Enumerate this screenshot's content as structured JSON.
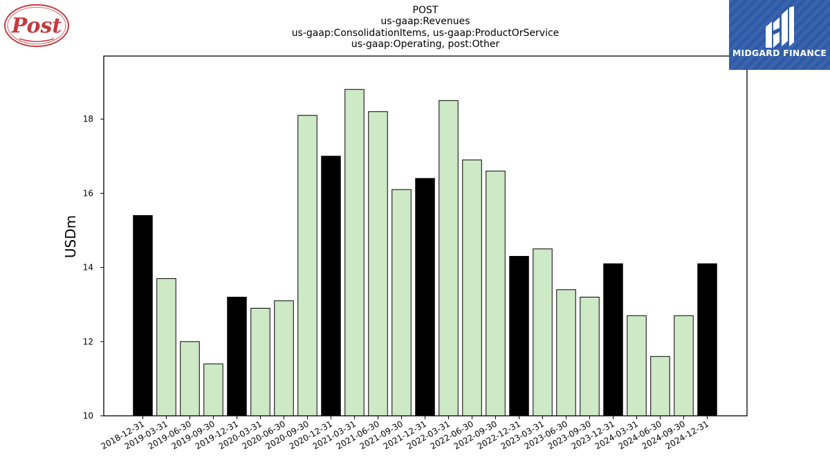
{
  "logos": {
    "post_logo_text": "Post",
    "midgard_logo_text": "MIDGARD FINANCE"
  },
  "colors": {
    "bar_black": "#000000",
    "bar_green": "#cde9c6",
    "midgard_blue": "#2f5aa8",
    "post_red": "#c6393f"
  },
  "chart_data": {
    "type": "bar",
    "title_lines": [
      "POST",
      "us-gaap:Revenues",
      "us-gaap:ConsolidationItems, us-gaap:ProductOrService",
      "us-gaap:Operating, post:Other"
    ],
    "xlabel": "",
    "ylabel": "USDm",
    "ylim": [
      10,
      19.7
    ],
    "yticks": [
      10,
      12,
      14,
      16,
      18
    ],
    "grid": false,
    "categories": [
      "2018-12-31",
      "2019-03-31",
      "2019-06-30",
      "2019-09-30",
      "2019-12-31",
      "2020-03-31",
      "2020-06-30",
      "2020-09-30",
      "2020-12-31",
      "2021-03-31",
      "2021-06-30",
      "2021-09-30",
      "2021-12-31",
      "2022-03-31",
      "2022-06-30",
      "2022-09-30",
      "2022-12-31",
      "2023-03-31",
      "2023-06-30",
      "2023-09-30",
      "2023-12-31",
      "2024-03-31",
      "2024-06-30",
      "2024-09-30",
      "2024-12-31"
    ],
    "values": [
      15.4,
      13.7,
      12.0,
      11.4,
      13.2,
      12.9,
      13.1,
      18.1,
      17.0,
      18.8,
      18.2,
      16.1,
      16.4,
      18.5,
      16.9,
      16.6,
      14.3,
      14.5,
      13.4,
      13.2,
      14.1,
      12.7,
      11.6,
      12.7,
      14.1
    ],
    "year_end_highlight": [
      true,
      false,
      false,
      false,
      true,
      false,
      false,
      false,
      true,
      false,
      false,
      false,
      true,
      false,
      false,
      false,
      true,
      false,
      false,
      false,
      true,
      false,
      false,
      false,
      true
    ]
  }
}
